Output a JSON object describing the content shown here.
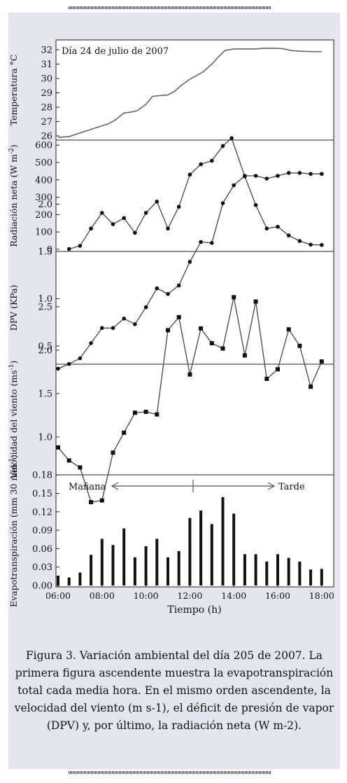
{
  "figure": {
    "caption": "Figura 3. Variación ambiental del día 205 de 2007. La primera figura ascendente muestra la evapotranspiración total cada media hora. En el mismo orden ascendente, la velocidad del viento (m s-1), el déficit de presión de vapor (DPV) y, por último, la radiación neta (W m-2)."
  },
  "chart_data": [
    {
      "type": "line",
      "annotation": "Día 24 de julio de 2007",
      "ylabel": "Temperatura °C",
      "yticks": [
        26,
        27,
        28,
        29,
        30,
        31,
        32
      ],
      "ylim": [
        25.8,
        32.6
      ],
      "xlim": [
        6.0,
        18.5
      ],
      "x": [
        6.0,
        6.5,
        7.0,
        7.5,
        8.0,
        8.3,
        8.6,
        9.0,
        9.3,
        9.6,
        10.0,
        10.3,
        10.6,
        11.0,
        11.3,
        11.6,
        12.0,
        12.3,
        12.6,
        13.0,
        13.3,
        13.6,
        14.0,
        14.3,
        14.6,
        15.0,
        15.3,
        15.6,
        16.0,
        16.3,
        16.6,
        17.0,
        17.3,
        17.6,
        18.0
      ],
      "y": [
        25.9,
        25.95,
        26.2,
        26.45,
        26.7,
        26.85,
        27.1,
        27.6,
        27.65,
        27.75,
        28.2,
        28.75,
        28.8,
        28.85,
        29.1,
        29.5,
        29.95,
        30.2,
        30.45,
        31.0,
        31.5,
        31.95,
        32.05,
        32.05,
        32.05,
        32.05,
        32.1,
        32.1,
        32.1,
        32.05,
        31.95,
        31.9,
        31.88,
        31.87,
        31.87
      ]
    },
    {
      "type": "line",
      "ylabel": "Radiación neta (W m-2)",
      "ylabel_unit_exponent": "-2",
      "yticks": [
        0,
        100,
        200,
        300,
        400,
        500,
        600
      ],
      "ylim": [
        0,
        640
      ],
      "xlim": [
        6.0,
        18.5
      ],
      "x": [
        6.5,
        7.0,
        7.5,
        8.0,
        8.5,
        9.0,
        9.5,
        10.0,
        10.5,
        11.0,
        11.5,
        12.0,
        12.5,
        13.0,
        13.5,
        13.9,
        14.5,
        15.0,
        15.5,
        16.0,
        16.5,
        17.0,
        17.5,
        18.0
      ],
      "y": [
        2,
        20,
        120,
        210,
        145,
        180,
        95,
        210,
        275,
        120,
        245,
        430,
        490,
        510,
        595,
        640,
        420,
        255,
        120,
        130,
        80,
        48,
        27,
        25
      ]
    },
    {
      "type": "line",
      "ylabel": "DPV (KPa)",
      "yticks": [
        0.5,
        1.0,
        1.5,
        2.0
      ],
      "yticklabels": [
        "0.5",
        "1.0",
        "1.5",
        "2.0"
      ],
      "ylim": [
        0.2,
        2.42
      ],
      "xlim": [
        6.0,
        18.5
      ],
      "x": [
        6.0,
        6.5,
        7.0,
        7.5,
        8.0,
        8.5,
        9.0,
        9.5,
        10.0,
        10.5,
        11.0,
        11.5,
        12.0,
        12.5,
        13.0,
        13.5,
        14.0,
        14.5,
        15.0,
        15.5,
        16.0,
        16.5,
        17.0,
        17.5,
        18.0
      ],
      "y": [
        0.26,
        0.31,
        0.37,
        0.53,
        0.69,
        0.69,
        0.79,
        0.73,
        0.91,
        1.11,
        1.05,
        1.14,
        1.39,
        1.6,
        1.59,
        2.01,
        2.2,
        2.3,
        2.3,
        2.27,
        2.3,
        2.33,
        2.33,
        2.32,
        2.32
      ]
    },
    {
      "type": "line",
      "ylabel": "Velocidad del viento (ms-1)",
      "ylabel_unit_exponent": "-1",
      "yticks": [
        1.0,
        1.5,
        2.0,
        2.5
      ],
      "yticklabels": [
        "1.0",
        "1.5",
        "2.0",
        "2.5"
      ],
      "ylim": [
        0.2,
        2.7
      ],
      "xlim": [
        6.0,
        18.5
      ],
      "x": [
        6.0,
        6.5,
        7.0,
        7.5,
        8.0,
        8.5,
        9.0,
        9.5,
        10.0,
        10.5,
        11.0,
        11.5,
        12.0,
        12.5,
        13.0,
        13.5,
        14.0,
        14.5,
        15.0,
        15.5,
        16.0,
        16.5,
        17.0,
        17.5,
        18.0
      ],
      "y": [
        0.88,
        0.73,
        0.65,
        0.25,
        0.27,
        0.82,
        1.05,
        1.28,
        1.29,
        1.26,
        2.23,
        2.38,
        1.72,
        2.25,
        2.08,
        2.02,
        2.61,
        1.94,
        2.56,
        1.67,
        1.78,
        2.24,
        2.05,
        1.58,
        1.87
      ]
    },
    {
      "type": "bar",
      "ylabel": "Evapotranspiración (mm 30 min-1)",
      "ylabel_unit_exponent": "-1",
      "xlabel": "Tiempo (h)",
      "yticks": [
        0.0,
        0.03,
        0.06,
        0.09,
        0.12,
        0.15,
        0.18
      ],
      "yticklabels": [
        "0.00",
        "0.03",
        "0.06",
        "0.09",
        "0.12",
        "0.15",
        "0.18"
      ],
      "ylim": [
        0,
        0.18
      ],
      "xlim": [
        6.0,
        18.5
      ],
      "xticks": [
        6,
        8,
        10,
        12,
        14,
        16,
        18
      ],
      "xticklabels": [
        "06:00",
        "08:00",
        "10:00",
        "12:00",
        "14:00",
        "16:00",
        "18:00"
      ],
      "annotations": {
        "left": "Mañana",
        "right": "Tarde"
      },
      "x": [
        6.5,
        7.0,
        7.5,
        8.0,
        8.5,
        9.0,
        9.5,
        10.0,
        10.5,
        11.0,
        11.5,
        12.0,
        12.5,
        13.0,
        13.5,
        14.0,
        14.5,
        15.0,
        15.5,
        16.0,
        16.5,
        17.0,
        17.5,
        18.0,
        18.5
      ],
      "values": [
        0.016,
        0.013,
        0.021,
        0.05,
        0.076,
        0.066,
        0.093,
        0.046,
        0.064,
        0.076,
        0.046,
        0.056,
        0.11,
        0.122,
        0.1,
        0.144,
        0.117,
        0.051,
        0.051,
        0.039,
        0.051,
        0.045,
        0.039,
        0.026,
        0.027
      ]
    }
  ]
}
